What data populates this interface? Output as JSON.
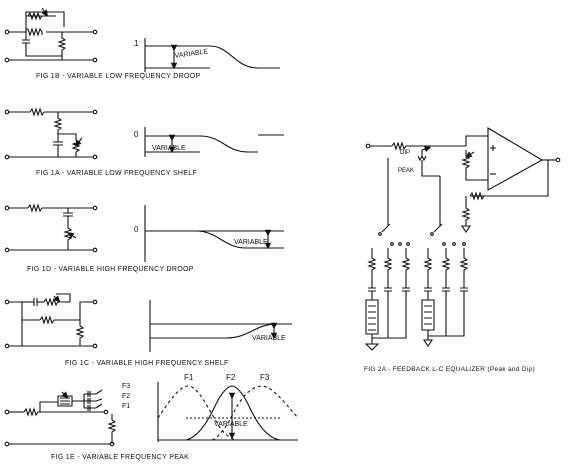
{
  "figures": {
    "fig1b": {
      "caption": "FIG 1B - VARIABLE LOW FREQUENCY DROOP",
      "axis_label": "1",
      "curve_label": "VARIABLE"
    },
    "fig1a": {
      "caption": "FIG 1A - VARIABLE LOW FREQUENCY SHELF",
      "axis_label": "0",
      "curve_label": "VARIABLE"
    },
    "fig1d": {
      "caption": "FIG 1D - VARIABLE HIGH FREQUENCY DROOP",
      "axis_label": "0",
      "curve_label": "VARIABLE"
    },
    "fig1c": {
      "caption": "FIG 1C - VARIABLE HIGH FREQUENCY SHELF",
      "curve_label": "VARIABLE"
    },
    "fig1e": {
      "caption": "FIG 1E - VARIABLE FREQUENCY PEAK",
      "curve_label": "VARIABLE",
      "freq_labels": [
        "F1",
        "F2",
        "F3"
      ],
      "switch_labels": [
        "F3",
        "F2",
        "F1"
      ]
    },
    "fig2a": {
      "caption": "FIG 2A - FEEDBACK L-C EQUALIZER (Peak and Dip)",
      "dip_label": "DIP",
      "peak_label": "PEAK"
    }
  }
}
